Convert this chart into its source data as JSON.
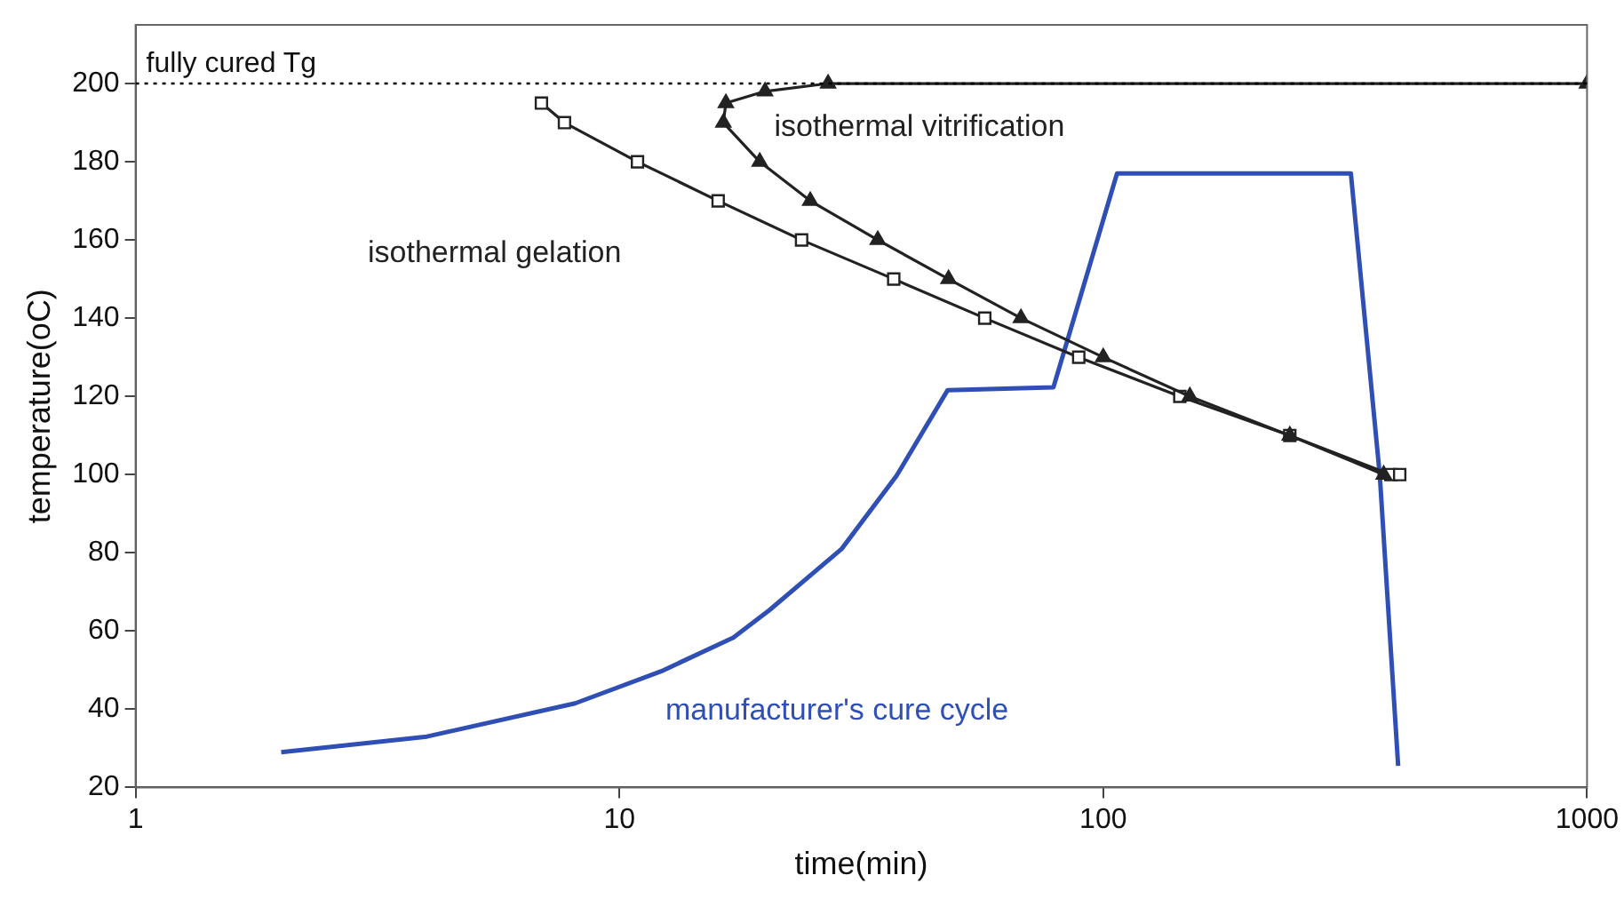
{
  "chart_data": {
    "type": "line",
    "xlabel": "time(min)",
    "ylabel": "temperature(oC)",
    "log": "x",
    "xlim": [
      1,
      1000
    ],
    "xticks": [
      1,
      10,
      100,
      1000
    ],
    "ylim": [
      20,
      215
    ],
    "yticks": [
      20,
      40,
      60,
      80,
      100,
      120,
      140,
      160,
      180,
      200
    ],
    "grid": false,
    "legend": false,
    "line_style": "solid",
    "ref_lines": [
      {
        "axis": "y",
        "value": 200,
        "label": "fully cured Tg",
        "color": "#000000",
        "line_style": "dotted"
      }
    ],
    "series": [
      {
        "name": "isothermal vitrification",
        "color": "#222222",
        "marker": "triangle",
        "x": [
          1000,
          27,
          20,
          16.6,
          16.4,
          19.5,
          24.8,
          34.2,
          47.9,
          67.6,
          100,
          151,
          243,
          380
        ],
        "values": [
          200,
          200,
          198,
          195,
          190,
          180,
          170,
          160,
          150,
          140,
          130,
          120,
          110,
          100
        ]
      },
      {
        "name": "isothermal gelation",
        "color": "#222222",
        "marker": "square",
        "x": [
          6.9,
          7.7,
          10.9,
          16,
          23.8,
          36.9,
          56.9,
          89,
          144,
          243,
          393,
          410
        ],
        "values": [
          195,
          190,
          180,
          170,
          160,
          150,
          140,
          130,
          120,
          110,
          100,
          100
        ]
      },
      {
        "name": "manufacturer's cure cycle",
        "color": "#2f4fb5",
        "marker": "none",
        "x": [
          2,
          4,
          8.1,
          12.2,
          17.2,
          20.4,
          28.8,
          37.4,
          47.7,
          78.9,
          106.8,
          325,
          373,
          407
        ],
        "values": [
          29,
          33,
          41.5,
          49.7,
          58.3,
          65.3,
          81,
          99.7,
          121.6,
          122.3,
          177,
          177,
          99.7,
          25.5
        ]
      }
    ]
  }
}
